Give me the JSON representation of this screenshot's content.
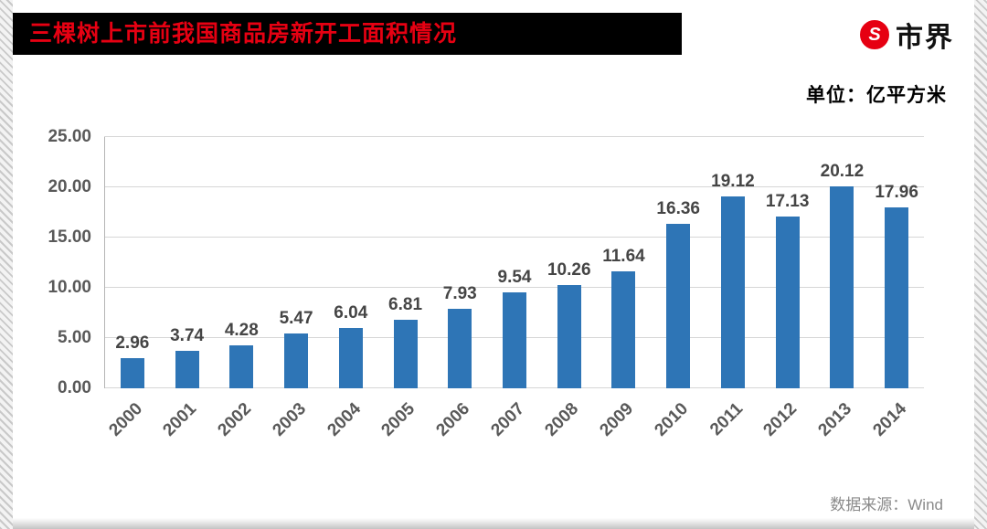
{
  "header": {
    "title": "三棵树上市前我国商品房新开工面积情况",
    "brand": "市界",
    "brand_icon": "S"
  },
  "chart_data": {
    "type": "bar",
    "title": "三棵树上市前我国商品房新开工面积情况",
    "unit_label": "单位：亿平方米",
    "categories": [
      "2000",
      "2001",
      "2002",
      "2003",
      "2004",
      "2005",
      "2006",
      "2007",
      "2008",
      "2009",
      "2010",
      "2011",
      "2012",
      "2013",
      "2014"
    ],
    "values": [
      2.96,
      3.74,
      4.28,
      5.47,
      6.04,
      6.81,
      7.93,
      9.54,
      10.26,
      11.64,
      16.36,
      19.12,
      17.13,
      20.12,
      17.96
    ],
    "xlabel": "",
    "ylabel": "",
    "ylim": [
      0,
      25
    ],
    "yticks": [
      "0.00",
      "5.00",
      "10.00",
      "15.00",
      "20.00",
      "25.00"
    ],
    "grid": true,
    "legend": "none",
    "bar_color": "#2E75B6"
  },
  "footer": {
    "source": "数据来源：Wind"
  },
  "colors": {
    "title_text": "#e60012",
    "title_bg": "#000000",
    "bar": "#2E75B6",
    "axis_text": "#595959"
  }
}
